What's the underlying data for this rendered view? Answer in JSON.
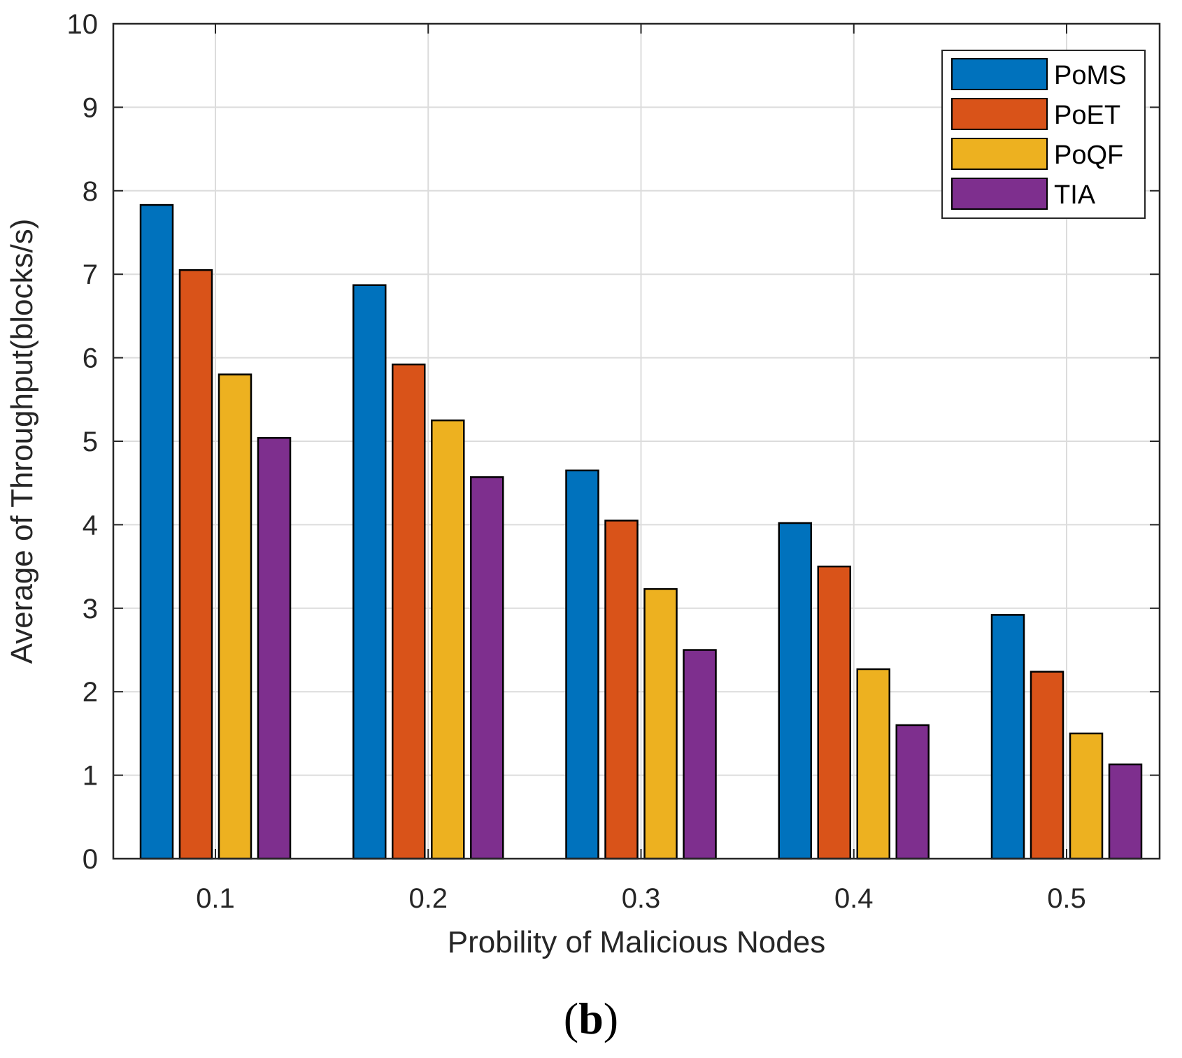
{
  "chart_data": {
    "type": "bar",
    "title": "",
    "xlabel": "Probility of Malicious Nodes",
    "ylabel": "Average of Throughput(blocks/s)",
    "categories": [
      "0.1",
      "0.2",
      "0.3",
      "0.4",
      "0.5"
    ],
    "ylim": [
      0,
      10
    ],
    "yticks": [
      "0",
      "1",
      "2",
      "3",
      "4",
      "5",
      "6",
      "7",
      "8",
      "9",
      "10"
    ],
    "grid": true,
    "legend_position": "top-right",
    "series": [
      {
        "name": "PoMS",
        "color": "#0072BD",
        "values": [
          7.83,
          6.87,
          4.65,
          4.02,
          2.92
        ]
      },
      {
        "name": "PoET",
        "color": "#D95319",
        "values": [
          7.05,
          5.92,
          4.05,
          3.5,
          2.24
        ]
      },
      {
        "name": "PoQF",
        "color": "#EDB120",
        "values": [
          5.8,
          5.25,
          3.23,
          2.27,
          1.5
        ]
      },
      {
        "name": "TIA",
        "color": "#7E2F8E",
        "values": [
          5.04,
          4.57,
          2.5,
          1.6,
          1.13
        ]
      }
    ]
  },
  "panel": {
    "open": "(",
    "letter": "b",
    "close": ")"
  }
}
